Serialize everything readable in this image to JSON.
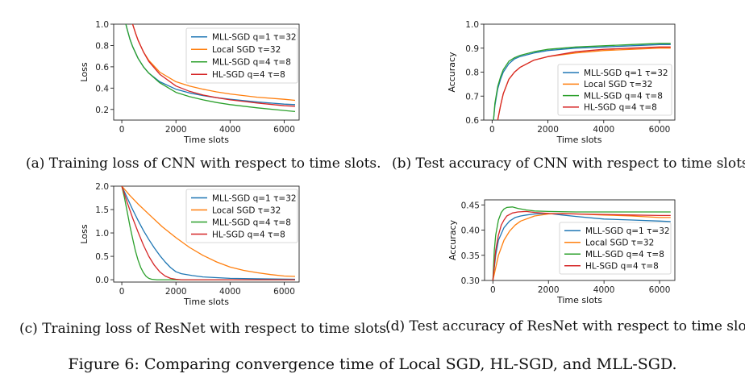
{
  "figure_caption": "Figure 6: Comparing convergence time of Local SGD, HL-SGD, and MLL-SGD.",
  "colors": {
    "blue": "#1f77b4",
    "orange": "#ff7f0e",
    "green": "#2ca02c",
    "red": "#d62728"
  },
  "chart_data": [
    {
      "id": "a",
      "type": "line",
      "caption": "(a) Training loss of CNN with respect to time slots.",
      "xlabel": "Time slots",
      "ylabel": "Loss",
      "xlim": [
        -300,
        6550
      ],
      "ylim": [
        0.1,
        1.0
      ],
      "xticks": [
        0,
        2000,
        4000,
        6000
      ],
      "yticks": [
        0.2,
        0.4,
        0.6,
        0.8,
        1.0
      ],
      "ytick_labels": [
        "0.2",
        "0.4",
        "0.6",
        "0.8",
        "1.0"
      ],
      "legend": "top-right",
      "series": [
        {
          "name": "MLL-SGD q=1 τ=32",
          "color": "#1f77b4",
          "x": [
            150,
            200,
            300,
            400,
            600,
            800,
            1000,
            1400,
            2000,
            2500,
            3000,
            3500,
            4000,
            5000,
            6000,
            6400
          ],
          "y": [
            1.0,
            0.95,
            0.86,
            0.79,
            0.68,
            0.6,
            0.54,
            0.46,
            0.39,
            0.355,
            0.33,
            0.31,
            0.295,
            0.27,
            0.25,
            0.245
          ]
        },
        {
          "name": "Local SGD τ=32",
          "color": "#ff7f0e",
          "x": [
            400,
            500,
            600,
            800,
            1000,
            1400,
            2000,
            2500,
            3000,
            3500,
            4000,
            5000,
            6000,
            6400
          ],
          "y": [
            1.0,
            0.92,
            0.85,
            0.74,
            0.66,
            0.55,
            0.46,
            0.42,
            0.39,
            0.365,
            0.345,
            0.315,
            0.295,
            0.285
          ]
        },
        {
          "name": "MLL-SGD q=4 τ=8",
          "color": "#2ca02c",
          "x": [
            150,
            200,
            300,
            400,
            600,
            800,
            1000,
            1400,
            2000,
            2500,
            3000,
            3500,
            4000,
            5000,
            6000,
            6400
          ],
          "y": [
            1.0,
            0.95,
            0.86,
            0.79,
            0.68,
            0.6,
            0.54,
            0.45,
            0.36,
            0.32,
            0.29,
            0.265,
            0.245,
            0.215,
            0.19,
            0.18
          ]
        },
        {
          "name": "HL-SGD q=4 τ=8",
          "color": "#d62728",
          "x": [
            400,
            500,
            600,
            800,
            1000,
            1400,
            2000,
            2500,
            3000,
            3500,
            4000,
            5000,
            6000,
            6400
          ],
          "y": [
            1.0,
            0.92,
            0.85,
            0.74,
            0.65,
            0.53,
            0.42,
            0.37,
            0.335,
            0.31,
            0.29,
            0.26,
            0.235,
            0.23
          ]
        }
      ]
    },
    {
      "id": "b",
      "type": "line",
      "caption": "(b) Test accuracy of CNN with respect to time slots.",
      "xlabel": "Time slots",
      "ylabel": "Accuracy",
      "xlim": [
        -300,
        6550
      ],
      "ylim": [
        0.6,
        1.0
      ],
      "xticks": [
        0,
        2000,
        4000,
        6000
      ],
      "yticks": [
        0.6,
        0.7,
        0.8,
        0.9,
        1.0
      ],
      "ytick_labels": [
        "0.6",
        "0.7",
        "0.8",
        "0.9",
        "1.0"
      ],
      "legend": "bottom-right",
      "series": [
        {
          "name": "MLL-SGD q=1 τ=32",
          "color": "#1f77b4",
          "x": [
            50,
            100,
            200,
            300,
            400,
            600,
            800,
            1000,
            1500,
            2000,
            3000,
            4000,
            5000,
            6000,
            6400
          ],
          "y": [
            0.6,
            0.66,
            0.73,
            0.77,
            0.8,
            0.835,
            0.855,
            0.865,
            0.88,
            0.89,
            0.9,
            0.905,
            0.91,
            0.915,
            0.915
          ]
        },
        {
          "name": "Local SGD τ=32",
          "color": "#ff7f0e",
          "x": [
            200,
            300,
            400,
            600,
            800,
            1000,
            1500,
            2000,
            3000,
            4000,
            5000,
            6000,
            6400
          ],
          "y": [
            0.6,
            0.66,
            0.71,
            0.77,
            0.8,
            0.82,
            0.85,
            0.865,
            0.88,
            0.89,
            0.895,
            0.9,
            0.9
          ]
        },
        {
          "name": "MLL-SGD q=4 τ=8",
          "color": "#2ca02c",
          "x": [
            50,
            100,
            200,
            300,
            400,
            600,
            800,
            1000,
            1500,
            2000,
            3000,
            4000,
            5000,
            6000,
            6400
          ],
          "y": [
            0.6,
            0.67,
            0.74,
            0.78,
            0.81,
            0.845,
            0.86,
            0.87,
            0.885,
            0.895,
            0.905,
            0.91,
            0.915,
            0.92,
            0.92
          ]
        },
        {
          "name": "HL-SGD q=4 τ=8",
          "color": "#d62728",
          "x": [
            200,
            300,
            400,
            600,
            800,
            1000,
            1500,
            2000,
            3000,
            4000,
            5000,
            6000,
            6400
          ],
          "y": [
            0.6,
            0.66,
            0.71,
            0.77,
            0.8,
            0.82,
            0.85,
            0.865,
            0.885,
            0.895,
            0.9,
            0.905,
            0.905
          ]
        }
      ]
    },
    {
      "id": "c",
      "type": "line",
      "caption": "(c) Training loss of ResNet with respect to time slots.",
      "xlabel": "Time slots",
      "ylabel": "Loss",
      "xlim": [
        -300,
        6550
      ],
      "ylim": [
        -0.05,
        2.0
      ],
      "xticks": [
        0,
        2000,
        4000,
        6000
      ],
      "yticks": [
        0.0,
        0.5,
        1.0,
        1.5,
        2.0
      ],
      "ytick_labels": [
        "0.0",
        "0.5",
        "1.0",
        "1.5",
        "2.0"
      ],
      "legend": "top-right",
      "series": [
        {
          "name": "MLL-SGD q=1 τ=32",
          "color": "#1f77b4",
          "x": [
            0,
            200,
            400,
            600,
            800,
            1000,
            1200,
            1400,
            1600,
            1800,
            2000,
            2200,
            2600,
            3000,
            4000,
            5000,
            6400
          ],
          "y": [
            2.0,
            1.75,
            1.5,
            1.27,
            1.05,
            0.86,
            0.68,
            0.52,
            0.38,
            0.26,
            0.17,
            0.13,
            0.09,
            0.06,
            0.03,
            0.02,
            0.01
          ]
        },
        {
          "name": "Local SGD τ=32",
          "color": "#ff7f0e",
          "x": [
            0,
            300,
            600,
            1000,
            1500,
            2000,
            2500,
            3000,
            3500,
            4000,
            4500,
            5000,
            5500,
            6000,
            6400
          ],
          "y": [
            2.0,
            1.8,
            1.62,
            1.4,
            1.13,
            0.9,
            0.69,
            0.52,
            0.38,
            0.27,
            0.2,
            0.15,
            0.11,
            0.08,
            0.07
          ]
        },
        {
          "name": "MLL-SGD q=4 τ=8",
          "color": "#2ca02c",
          "x": [
            0,
            100,
            200,
            300,
            400,
            500,
            600,
            700,
            800,
            900,
            1000,
            1100,
            1300,
            2000,
            4000,
            6400
          ],
          "y": [
            2.0,
            1.75,
            1.45,
            1.15,
            0.88,
            0.62,
            0.42,
            0.26,
            0.15,
            0.07,
            0.03,
            0.01,
            0.0,
            0.0,
            0.0,
            0.0
          ]
        },
        {
          "name": "HL-SGD q=4 τ=8",
          "color": "#d62728",
          "x": [
            0,
            200,
            400,
            600,
            800,
            1000,
            1200,
            1400,
            1600,
            1800,
            2000,
            2200,
            3000,
            4000,
            6400
          ],
          "y": [
            2.0,
            1.65,
            1.32,
            1.02,
            0.74,
            0.5,
            0.31,
            0.17,
            0.08,
            0.03,
            0.01,
            0.0,
            0.0,
            0.0,
            0.0
          ]
        }
      ]
    },
    {
      "id": "d",
      "type": "line",
      "caption": "(d) Test accuracy of ResNet with respect to time slots.",
      "xlabel": "Time slots",
      "ylabel": "Accuracy",
      "xlim": [
        -300,
        6550
      ],
      "ylim": [
        0.3,
        0.46
      ],
      "xticks": [
        0,
        2000,
        4000,
        6000
      ],
      "yticks": [
        0.3,
        0.35,
        0.4,
        0.45
      ],
      "ytick_labels": [
        "0.30",
        "0.35",
        "0.40",
        "0.45"
      ],
      "legend": "bottom-right",
      "series": [
        {
          "name": "MLL-SGD q=1 τ=32",
          "color": "#1f77b4",
          "x": [
            0,
            100,
            200,
            400,
            600,
            800,
            1000,
            1200,
            1500,
            2000,
            2500,
            3000,
            4000,
            5000,
            6000,
            6400
          ],
          "y": [
            0.3,
            0.35,
            0.38,
            0.405,
            0.418,
            0.425,
            0.428,
            0.43,
            0.432,
            0.433,
            0.43,
            0.427,
            0.422,
            0.42,
            0.418,
            0.417
          ]
        },
        {
          "name": "Local SGD τ=32",
          "color": "#ff7f0e",
          "x": [
            0,
            200,
            400,
            600,
            800,
            1000,
            1500,
            2000,
            2500,
            3000,
            4000,
            5000,
            6000,
            6400
          ],
          "y": [
            0.3,
            0.35,
            0.38,
            0.398,
            0.41,
            0.418,
            0.428,
            0.432,
            0.433,
            0.432,
            0.43,
            0.428,
            0.425,
            0.425
          ]
        },
        {
          "name": "MLL-SGD q=4 τ=8",
          "color": "#2ca02c",
          "x": [
            0,
            50,
            100,
            200,
            300,
            400,
            500,
            700,
            900,
            1200,
            1500,
            2000,
            3000,
            4000,
            5000,
            6000,
            6400
          ],
          "y": [
            0.3,
            0.36,
            0.39,
            0.42,
            0.435,
            0.442,
            0.445,
            0.446,
            0.443,
            0.44,
            0.438,
            0.437,
            0.436,
            0.436,
            0.436,
            0.436,
            0.436
          ]
        },
        {
          "name": "HL-SGD q=4 τ=8",
          "color": "#d62728",
          "x": [
            0,
            100,
            200,
            300,
            400,
            500,
            700,
            900,
            1200,
            1500,
            2000,
            3000,
            4000,
            5000,
            6000,
            6400
          ],
          "y": [
            0.3,
            0.36,
            0.39,
            0.41,
            0.42,
            0.428,
            0.434,
            0.436,
            0.437,
            0.435,
            0.433,
            0.432,
            0.431,
            0.43,
            0.429,
            0.429
          ]
        }
      ]
    }
  ]
}
